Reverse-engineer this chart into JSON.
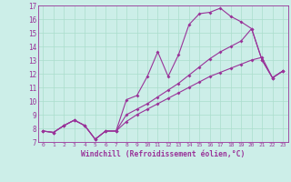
{
  "xlabel": "Windchill (Refroidissement éolien,°C)",
  "bg_color": "#cceee8",
  "line_color": "#993399",
  "grid_color": "#aaddcc",
  "xmin": 0,
  "xmax": 23,
  "ymin": 7,
  "ymax": 17,
  "line1": [
    7.8,
    7.7,
    8.2,
    8.6,
    8.2,
    7.2,
    7.8,
    7.8,
    10.1,
    10.4,
    11.8,
    13.6,
    11.8,
    13.4,
    15.6,
    16.4,
    16.5,
    16.8,
    16.2,
    15.8,
    15.3,
    13.0,
    11.7,
    12.2
  ],
  "line2": [
    7.8,
    7.7,
    8.2,
    8.6,
    8.2,
    7.2,
    7.8,
    7.8,
    9.0,
    9.4,
    9.8,
    10.3,
    10.8,
    11.3,
    11.9,
    12.5,
    13.1,
    13.6,
    14.0,
    14.4,
    15.3,
    13.0,
    11.7,
    12.2
  ],
  "line3": [
    7.8,
    7.7,
    8.2,
    8.6,
    8.2,
    7.2,
    7.8,
    7.8,
    8.5,
    9.0,
    9.4,
    9.8,
    10.2,
    10.6,
    11.0,
    11.4,
    11.8,
    12.1,
    12.4,
    12.7,
    13.0,
    13.2,
    11.7,
    12.2
  ]
}
